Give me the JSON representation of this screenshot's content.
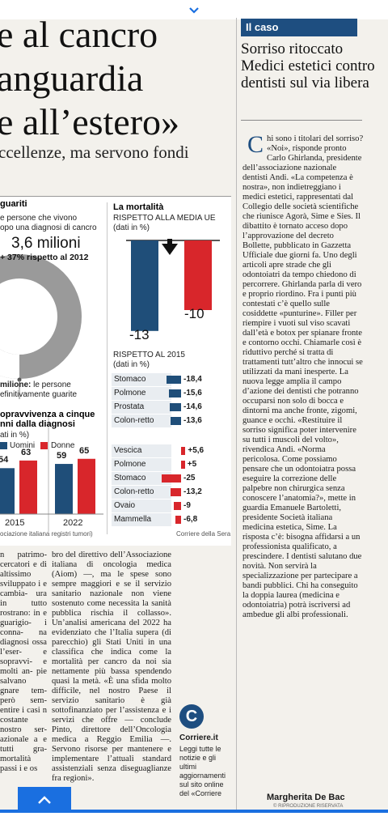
{
  "header": {
    "line1": "e al cancro",
    "line2": "anguardia",
    "line3": "e all’estero»",
    "subhead": "ccellenze, ma servono fondi"
  },
  "infographic": {
    "survivors": {
      "title": "guariti",
      "desc1": "e persone che vivono",
      "desc2": "opo una diagnosi di cancro",
      "total": "3,6 milioni",
      "increase": "+ 37% rispetto al 2012",
      "healed_bold": "milione:",
      "healed_text1": "le persone",
      "healed_text2": "efinitivamente guarite",
      "healed_fraction": 0.28
    },
    "survival": {
      "title1": "opravvivenza a cinque",
      "title2": "nni dalla diagnosi",
      "unit": "ati in %)",
      "legend_men": "Uomini",
      "legend_women": "Donne",
      "color_men": "#1f4e79",
      "color_women": "#d8262b"
    },
    "source": "ociazione italiana registri tumori)",
    "credit": "Corriere della Sera",
    "mortality": {
      "title": "La mortalità",
      "subtitle": "RISPETTO ALLA MEDIA UE",
      "unit": "(dati in %)",
      "label_it": "-13",
      "label_eu": "-10",
      "since_title": "RISPETTO AL 2015",
      "since_unit": "(dati in %)",
      "neg_rows": [
        {
          "label": "Stomaco",
          "value": "-18,4"
        },
        {
          "label": "Polmone",
          "value": "-15,6"
        },
        {
          "label": "Prostata",
          "value": "-14,6"
        },
        {
          "label": "Colon-retto",
          "value": "-13,6"
        }
      ],
      "women_rows": [
        {
          "label": "Vescica",
          "value": "+5,6"
        },
        {
          "label": "Polmone",
          "value": "+5"
        },
        {
          "label": "Stomaco",
          "value": "-25"
        },
        {
          "label": "Colon-retto",
          "value": "-13,2"
        },
        {
          "label": "Ovaio",
          "value": "-9"
        },
        {
          "label": "Mammella",
          "value": "-6,8"
        }
      ]
    }
  },
  "chart_data": [
    {
      "type": "bar",
      "title": "opravvivenza a cinque nni dalla diagnosi",
      "ylabel": "ati in %",
      "categories": [
        "2015",
        "2022"
      ],
      "series": [
        {
          "name": "Uomini",
          "values": [
            54,
            59
          ]
        },
        {
          "name": "Donne",
          "values": [
            63,
            65
          ]
        }
      ]
    },
    {
      "type": "bar",
      "title": "La mortalità",
      "subtitle": "RISPETTO ALLA MEDIA UE",
      "categories": [
        "",
        ""
      ],
      "values": [
        -13,
        -10
      ]
    },
    {
      "type": "bar",
      "title": "RISPETTO AL 2015",
      "categories": [
        "Stomaco",
        "Polmone",
        "Prostata",
        "Colon-retto"
      ],
      "values": [
        -18.4,
        -15.6,
        -14.6,
        -13.6
      ]
    },
    {
      "type": "bar",
      "categories": [
        "Vescica",
        "Polmone",
        "Stomaco",
        "Colon-retto",
        "Ovaio",
        "Mammella"
      ],
      "values": [
        5.6,
        5,
        -25,
        -13.2,
        -9,
        -6.8
      ]
    }
  ],
  "col1": "n patrimo- cercatori e di altissimo sviluppato i e cambia- ura in tutto rostrano: in e guarigio- i conna- na diagnosi ossa l’eser- e sopravvi- e molti an- pie salvano gnare tem- però sem- entire i casi n costante nostro ser- azionale a e tutti gra- mortalità passi i e os",
  "col2": "bro del direttivo dell’Associazione italiana di oncologia medica (Aiom) —, ma le spese sono sempre maggiori e se il servizio sanitario nazionale non viene sostenuto come necessita la sanità pubblica rischia il collasso». Un’analisi americana del 2022 ha evidenziato che l’Italia supera (di parecchio) gli Stati Uniti in una classifica che indica come la mortalità per cancro da noi sia nettamente più bassa spendendo quasi la metà. «È una sfida molto difficile, nel nostro Paese il servizio sanitario è già sottofinanziato per l’assistenza e i servizi che offre — conclude Pinto, direttore dell’Oncologia medica a Reggio Emilia —. Servono risorse per mantenere e implementare l’attuali standard assistenziali senza diseguaglianze fra regioni».",
  "corriere": {
    "logo": "C",
    "name": "Corriere.it",
    "text": "Leggi tutte le notizie e gli ultimi aggiornamenti sul sito online del «Corriere"
  },
  "sidebar": {
    "tag": "Il caso",
    "title": "Sorriso ritoccato Medici estetici contro dentisti sul via libera",
    "dropcap": "C",
    "body1": "hi sono i titolari del sorriso? «Noi», risponde pronto Carlo Ghirlanda, presidente dell’associazione nazionale dentisti Andi. «La competenza è nostra», non indietreggiano i medici estetici, rappresentati dal Collegio delle società scientifiche che riunisce Agorà, Sime e Sies. Il dibattito è tornato acceso dopo l’approvazione del decreto Bollette, pubblicato in Gazzetta Ufficiale due giorni fa. Uno degli articoli apre strade che gli odontoiatri da tempo chiedono di percorrere. Ghirlanda parla di vero e proprio riordino. Fra i punti più contestati c’è quello sulle cosiddette «punturine». Filler per riempire i vuoti sul viso scavati dall’età e botox per spianare fronte e contorno occhi. Chiamarle così è riduttivo perché si tratta di trattamenti tutt’altro che innocui se utilizzati da mani inesperte. La nuova legge amplia il campo d’azione dei dentisti che potranno occuparsi non solo di bocca e dintorni ma anche fronte, zigomi, guance e occhi. «Restituire il sorriso significa poter intervenire su tutti i muscoli del volto», rivendica Andi. «Norma pericolosa. Come possiamo pensare che un odontoiatra possa eseguire la correzione delle palpebre non chirurgica senza conoscere l’anatomia?», mette in guardia Emanuele Bartoletti, presidente Società italiana medicina estetica, Sime. La risposta c’è: bisogna affidarsi a un professionista qualificato, a prescindere. I dentisti salutano due novità. Non servirà la specializzazione per partecipare a bandi pubblici. Chi ha conseguito la doppia laurea (medicina e odontoiatria) potrà iscriversi ad ambedue gli albi professionali.",
    "signature": "Margherita De Bac",
    "rights": "© RIPRODUZIONE RISERVATA"
  },
  "nav": {
    "down_icon": "chevron-down-icon",
    "up_icon": "chevron-up-icon",
    "accent": "#1a6fe0"
  }
}
